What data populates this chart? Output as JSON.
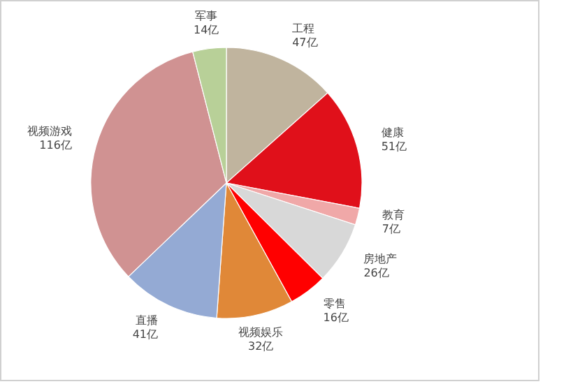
{
  "chart_data": {
    "type": "pie",
    "categories": [
      "工程",
      "健康",
      "教育",
      "房地产",
      "零售",
      "视频娱乐",
      "直播",
      "视频游戏",
      "军事"
    ],
    "values": [
      47,
      51,
      7,
      26,
      16,
      32,
      41,
      116,
      14
    ],
    "value_labels": [
      "47亿",
      "51亿",
      "7亿",
      "26亿",
      "16亿",
      "32亿",
      "41亿",
      "116亿",
      "14亿"
    ],
    "colors": [
      "#c0b49e",
      "#e0101a",
      "#f0a8a8",
      "#d8d8d8",
      "#ff0000",
      "#e08838",
      "#94aad4",
      "#d09292",
      "#b8d098"
    ]
  }
}
